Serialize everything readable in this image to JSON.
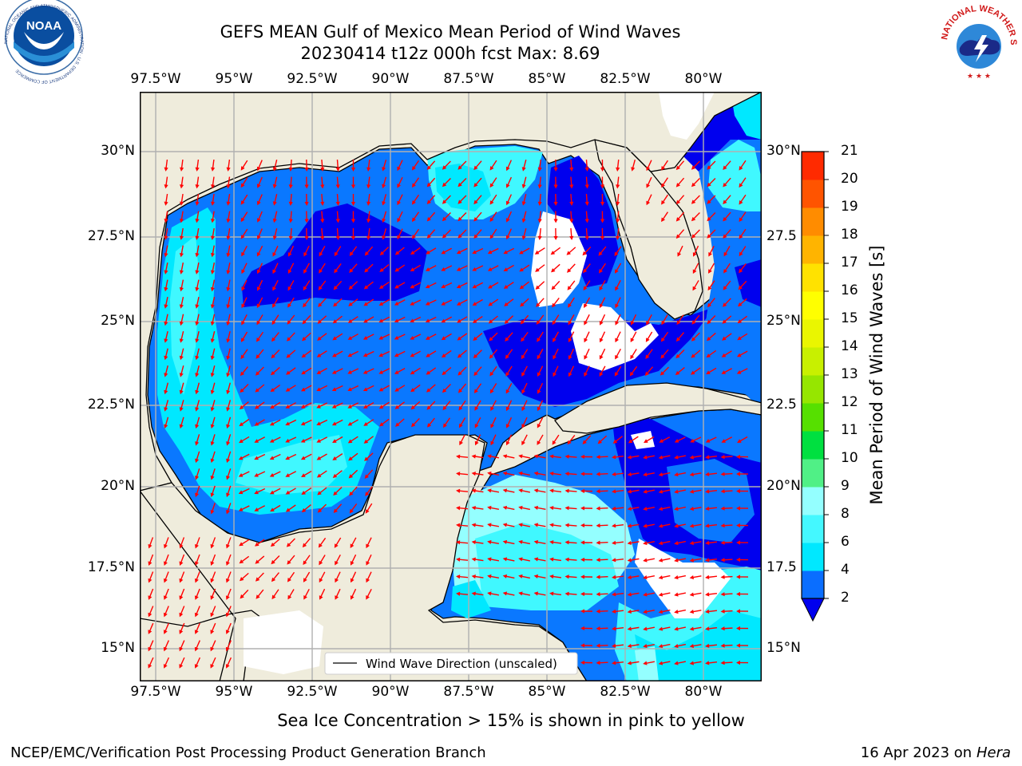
{
  "title": {
    "line1": "GEFS MEAN Gulf of Mexico Mean Period of Wind Waves",
    "line2": "20230414 t12z 000h fcst   Max: 8.69"
  },
  "map": {
    "lon_ticks": [
      "97.5°W",
      "95°W",
      "92.5°W",
      "90°W",
      "87.5°W",
      "85°W",
      "82.5°W",
      "80°W"
    ],
    "lat_ticks_left": [
      "30°N",
      "27.5°N",
      "25°N",
      "22.5°N",
      "20°N",
      "17.5°N",
      "15°N"
    ],
    "lat_ticks_right": [
      "30°N",
      "27.5",
      "25°N",
      "22.5",
      "20°N",
      "17.5",
      "15°N"
    ],
    "legend": "Wind Wave Direction (unscaled)",
    "arrow_color": "#ff0000",
    "land_color": "#efecdc"
  },
  "colorbar": {
    "label": "Mean Period of Wind Waves [s]",
    "ticks": [
      "2",
      "4",
      "6",
      "8",
      "9",
      "10",
      "11",
      "12",
      "13",
      "14",
      "15",
      "16",
      "17",
      "18",
      "19",
      "20",
      "21"
    ],
    "colors": [
      "#0a6eff",
      "#00e8ff",
      "#44f8ff",
      "#94ffff",
      "#50f086",
      "#00e040",
      "#56e000",
      "#96e600",
      "#c8f000",
      "#eaf600",
      "#ffff00",
      "#ffe200",
      "#ffb400",
      "#ff8c00",
      "#ff5400",
      "#ff2a00",
      "#ff0000"
    ]
  },
  "note": "Sea Ice Concentration > 15% is shown in pink to yellow",
  "footer": {
    "left": "NCEP/EMC/Verification Post Processing Product Generation Branch",
    "date": "16 Apr 2023 on ",
    "host": "Hera"
  },
  "logos": {
    "noaa": "NOAA",
    "noaa_ring": "NATIONAL OCEANIC AND ATMOSPHERIC ADMINISTRATION · U.S. DEPARTMENT OF COMMERCE",
    "nws_ring": "NATIONAL WEATHER SERVICE"
  }
}
